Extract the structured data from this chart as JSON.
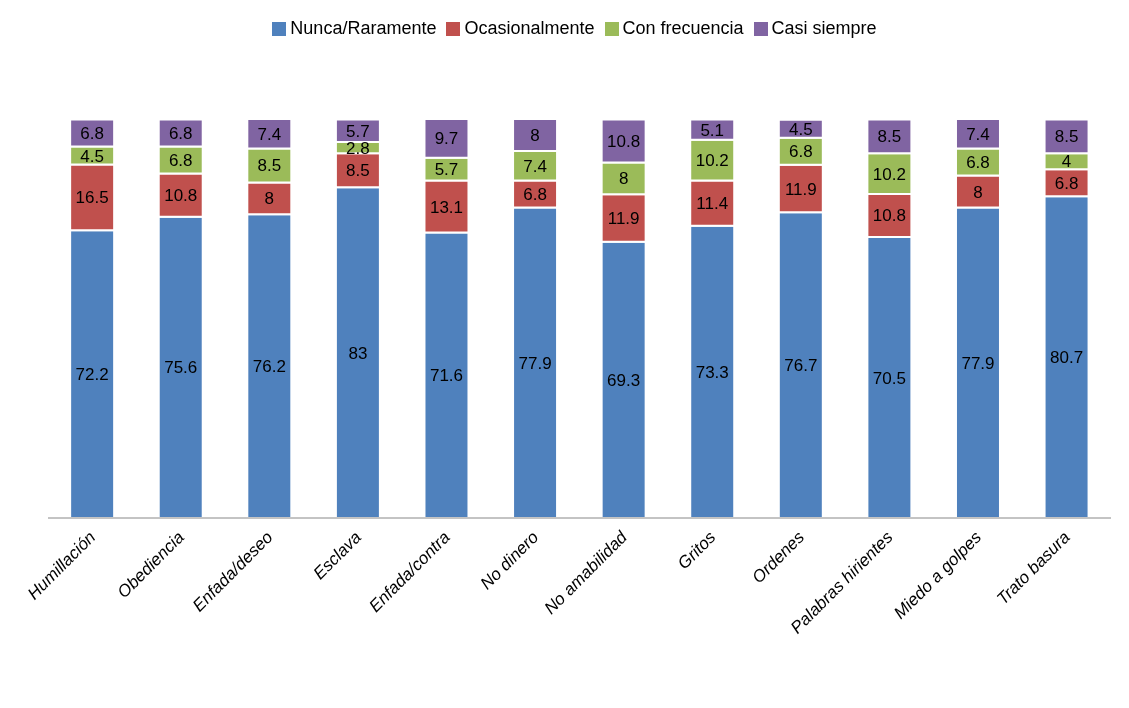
{
  "chart_data": {
    "type": "bar",
    "stacked": true,
    "data_labels": true,
    "legend": "top",
    "grid": false,
    "categories": [
      "Humillación",
      "Obediencia",
      "Enfada/deseo",
      "Esclava",
      "Enfada/contra",
      "No dinero",
      "No amabilidad",
      "Gritos",
      "Ordenes",
      "Palabras hirientes",
      "Miedo a golpes",
      "Trato basura"
    ],
    "series": [
      {
        "name": "Nunca/Raramente",
        "color": "#4f81bd",
        "values": [
          72.2,
          75.6,
          76.2,
          83,
          71.6,
          77.9,
          69.3,
          73.3,
          76.7,
          70.5,
          77.9,
          80.7
        ]
      },
      {
        "name": "Ocasionalmente",
        "color": "#c0504d",
        "values": [
          16.5,
          10.8,
          8,
          8.5,
          13.1,
          6.8,
          11.9,
          11.4,
          11.9,
          10.8,
          8,
          6.8
        ]
      },
      {
        "name": "Con frecuencia",
        "color": "#9bbb59",
        "values": [
          4.5,
          6.8,
          8.5,
          2.8,
          5.7,
          7.4,
          8,
          10.2,
          6.8,
          10.2,
          6.8,
          4
        ]
      },
      {
        "name": "Casi siempre",
        "color": "#8064a2",
        "values": [
          6.8,
          6.8,
          7.4,
          5.7,
          9.7,
          8,
          10.8,
          5.1,
          4.5,
          8.5,
          7.4,
          8.5
        ]
      }
    ]
  }
}
